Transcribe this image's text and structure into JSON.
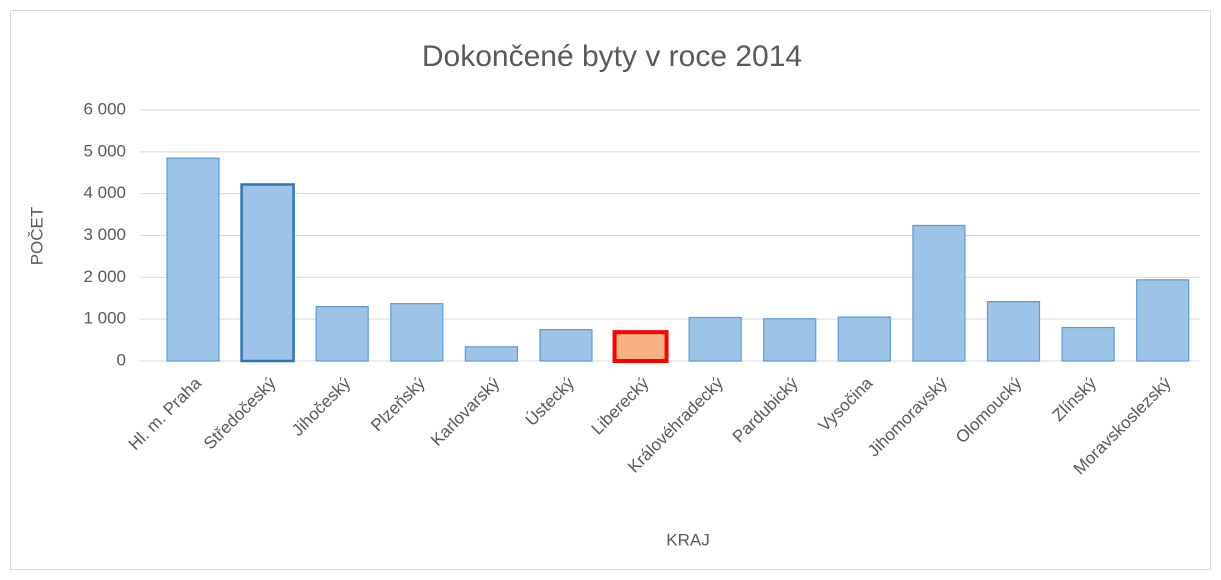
{
  "chart_data": {
    "type": "bar",
    "title": "Dokončené byty v roce 2014",
    "x_label": "KRAJ",
    "y_label": "POČET",
    "categories": [
      "Hl. m. Praha",
      "Středočeský",
      "Jihočeský",
      "Plzeňský",
      "Karlovarský",
      "Ústecký",
      "Liberecký",
      "Královéhradecký",
      "Pardubický",
      "Vysočina",
      "Jihomoravský",
      "Olomoucký",
      "Zlínský",
      "Moravskoslezský"
    ],
    "values": [
      4850,
      4220,
      1300,
      1370,
      340,
      750,
      690,
      1040,
      1010,
      1050,
      3240,
      1420,
      800,
      1940
    ],
    "colors": [
      "#9dc3e6",
      "#9dc3e6",
      "#9dc3e6",
      "#9dc3e6",
      "#9dc3e6",
      "#9dc3e6",
      "#f4b183",
      "#9dc3e6",
      "#9dc3e6",
      "#9dc3e6",
      "#9dc3e6",
      "#9dc3e6",
      "#9dc3e6",
      "#9dc3e6"
    ],
    "border_colors": [
      "#5b9bd5",
      "#2e75b6",
      "#5b9bd5",
      "#5b9bd5",
      "#5b9bd5",
      "#5b9bd5",
      "#ff0000",
      "#5b9bd5",
      "#5b9bd5",
      "#5b9bd5",
      "#5b9bd5",
      "#5b9bd5",
      "#5b9bd5",
      "#5b9bd5"
    ],
    "ylim": [
      0,
      6000
    ],
    "yticks": [
      {
        "value": 0,
        "label": "0"
      },
      {
        "value": 1000,
        "label": "1 000"
      },
      {
        "value": 2000,
        "label": "2 000"
      },
      {
        "value": 3000,
        "label": "3 000"
      },
      {
        "value": 4000,
        "label": "4 000"
      },
      {
        "value": 5000,
        "label": "5 000"
      },
      {
        "value": 6000,
        "label": "6 000"
      }
    ],
    "grid": true
  }
}
